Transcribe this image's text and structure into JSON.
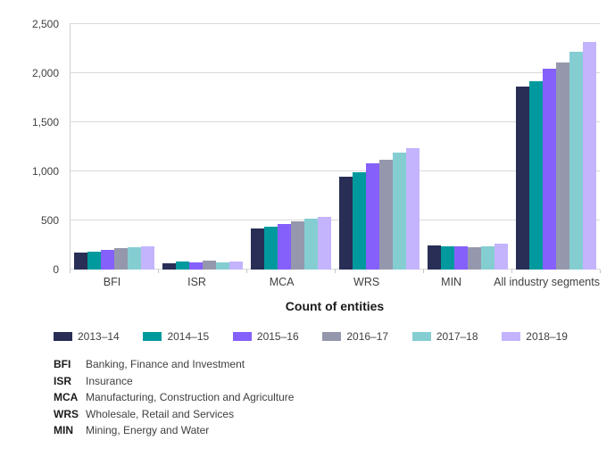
{
  "chart_data": {
    "type": "bar",
    "title": "Count of entities",
    "categories": [
      "BFI",
      "ISR",
      "MCA",
      "WRS",
      "MIN",
      "All industry segments"
    ],
    "series": [
      {
        "name": "2013–14",
        "color": "#282e55",
        "values": [
          175,
          65,
          420,
          945,
          250,
          1860
        ]
      },
      {
        "name": "2014–15",
        "color": "#009a9e",
        "values": [
          180,
          80,
          435,
          990,
          240,
          1915
        ]
      },
      {
        "name": "2015–16",
        "color": "#8560fb",
        "values": [
          200,
          75,
          465,
          1080,
          235,
          2045
        ]
      },
      {
        "name": "2016–17",
        "color": "#9598ac",
        "values": [
          215,
          90,
          490,
          1120,
          230,
          2110
        ]
      },
      {
        "name": "2017–18",
        "color": "#84ced2",
        "values": [
          230,
          70,
          515,
          1195,
          240,
          2220
        ]
      },
      {
        "name": "2018–19",
        "color": "#c4b4fe",
        "values": [
          240,
          85,
          535,
          1240,
          265,
          2320
        ]
      }
    ],
    "ylim": [
      0,
      2500
    ],
    "ytick_step": 500,
    "ytick_labels": [
      "0",
      "500",
      "1,000",
      "1,500",
      "2,000",
      "2,500"
    ],
    "grid": true,
    "legend_position": "bottom"
  },
  "footnotes": [
    {
      "abbr": "BFI",
      "desc": "Banking, Finance and Investment"
    },
    {
      "abbr": "ISR",
      "desc": "Insurance"
    },
    {
      "abbr": "MCA",
      "desc": "Manufacturing, Construction and Agriculture"
    },
    {
      "abbr": "WRS",
      "desc": "Wholesale, Retail and Services"
    },
    {
      "abbr": "MIN",
      "desc": "Mining, Energy and Water"
    }
  ]
}
